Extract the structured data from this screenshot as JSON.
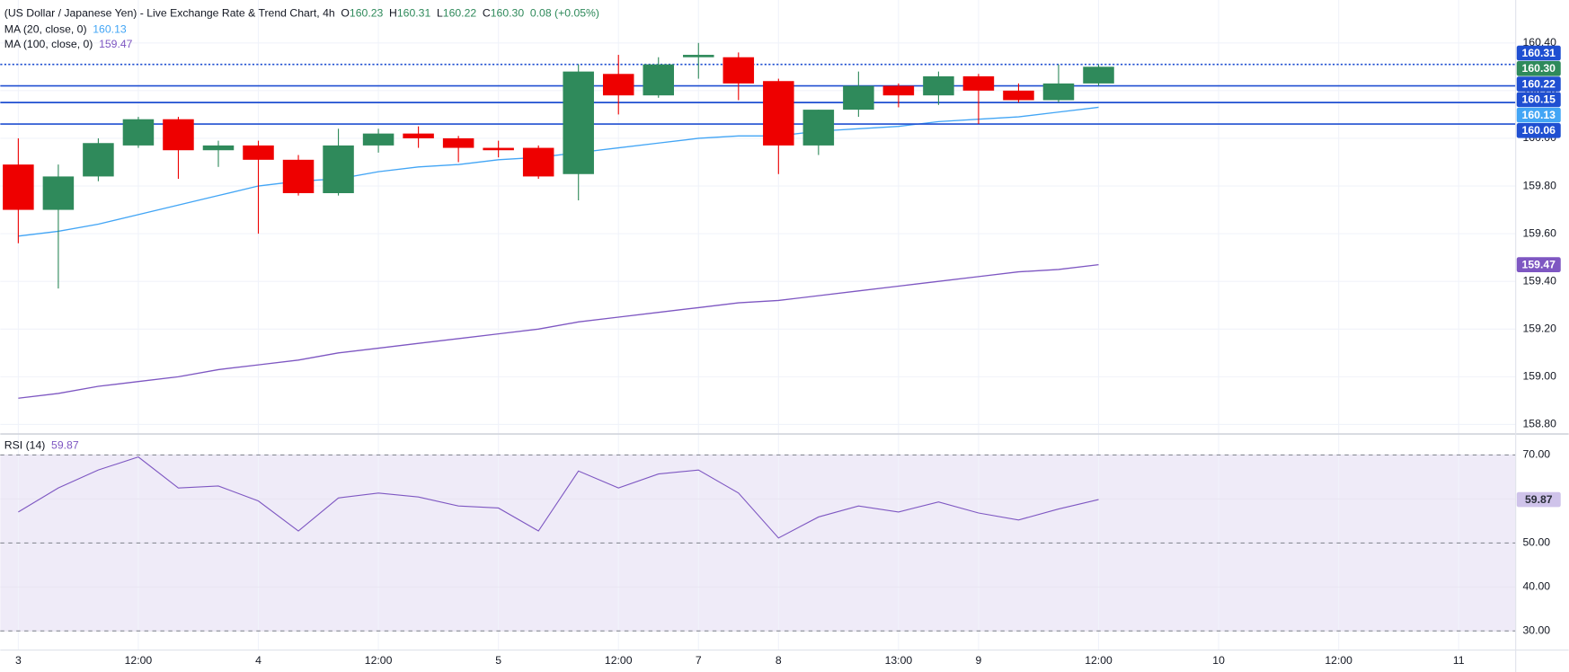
{
  "chart_data": [
    {
      "type": "candlestick",
      "title": "(US Dollar / Japanese Yen) - Live Exchange Rate & Trend Chart, 4h",
      "ohlc": [
        {
          "key": "O",
          "value": "160.23"
        },
        {
          "key": "H",
          "value": "160.31"
        },
        {
          "key": "L",
          "value": "160.22"
        },
        {
          "key": "C",
          "value": "160.30"
        }
      ],
      "change": "0.08 (+0.05%)",
      "categories": [
        "3",
        null,
        null,
        "12:00",
        null,
        null,
        "4",
        null,
        null,
        "12:00",
        null,
        null,
        "5",
        null,
        null,
        "12:00",
        null,
        "7",
        null,
        "8",
        null,
        null,
        "13:00",
        null,
        "9",
        null,
        null,
        "12:00",
        null,
        null,
        "10",
        null,
        null,
        "12:00",
        null,
        null,
        "11"
      ],
      "open": [
        159.89,
        159.7,
        159.84,
        159.97,
        160.08,
        159.95,
        159.97,
        159.91,
        159.77,
        159.97,
        160.02,
        160,
        159.96,
        159.96,
        159.85,
        160.27,
        160.18,
        160.34,
        160.34,
        160.24,
        159.97,
        160.12,
        160.22,
        160.18,
        160.26,
        160.2,
        160.16,
        160.23,
        null,
        null,
        null,
        null,
        null,
        null,
        null,
        null,
        null
      ],
      "high": [
        160,
        159.89,
        160,
        160.09,
        160.09,
        159.99,
        159.99,
        159.93,
        160.04,
        160.04,
        160.05,
        160.01,
        159.99,
        159.97,
        160.31,
        160.35,
        160.34,
        160.4,
        160.36,
        160.25,
        160.12,
        160.28,
        160.23,
        160.28,
        160.27,
        160.23,
        160.31,
        160.31,
        null,
        null,
        null,
        null,
        null,
        null,
        null,
        null,
        null
      ],
      "low": [
        159.56,
        159.37,
        159.82,
        159.96,
        159.83,
        159.88,
        159.6,
        159.76,
        159.76,
        159.94,
        159.96,
        159.9,
        159.92,
        159.83,
        159.74,
        160.1,
        160.17,
        160.25,
        160.16,
        159.85,
        159.93,
        160.09,
        160.13,
        160.14,
        160.06,
        160.15,
        160.15,
        160.22,
        null,
        null,
        null,
        null,
        null,
        null,
        null,
        null,
        null
      ],
      "close": [
        159.7,
        159.84,
        159.98,
        160.08,
        159.95,
        159.97,
        159.91,
        159.77,
        159.97,
        160.02,
        160,
        159.96,
        159.95,
        159.84,
        160.28,
        160.18,
        160.31,
        160.35,
        160.23,
        159.97,
        160.12,
        160.22,
        160.18,
        160.26,
        160.2,
        160.16,
        160.23,
        160.3,
        null,
        null,
        null,
        null,
        null,
        null,
        null,
        null,
        null
      ],
      "close_label": "160.30",
      "up_color": "#2f8a5b",
      "down_color": "#ee0000",
      "overlays": [
        {
          "name": "MA (20, close, 0)",
          "color": "#42a5f5",
          "values": [
            159.59,
            159.61,
            159.64,
            159.68,
            159.72,
            159.76,
            159.8,
            159.82,
            159.83,
            159.86,
            159.88,
            159.89,
            159.91,
            159.92,
            159.94,
            159.96,
            159.98,
            160,
            160.01,
            160.01,
            160.03,
            160.04,
            160.05,
            160.07,
            160.08,
            160.09,
            160.11,
            160.13,
            null,
            null,
            null,
            null,
            null,
            null,
            null,
            null,
            null
          ]
        },
        {
          "name": "MA (100, close, 0)",
          "color": "#7e57c2",
          "values": [
            158.91,
            158.93,
            158.96,
            158.98,
            159,
            159.03,
            159.05,
            159.07,
            159.1,
            159.12,
            159.14,
            159.16,
            159.18,
            159.2,
            159.23,
            159.25,
            159.27,
            159.29,
            159.31,
            159.32,
            159.34,
            159.36,
            159.38,
            159.4,
            159.42,
            159.44,
            159.45,
            159.47,
            null,
            null,
            null,
            null,
            null,
            null,
            null,
            null,
            null
          ]
        }
      ],
      "levels": [
        {
          "value": 160.31,
          "label": "160.31",
          "style": "dotted"
        },
        {
          "value": 160.22,
          "label": "160.22",
          "style": "solid"
        },
        {
          "value": 160.15,
          "label": "160.15",
          "style": "solid"
        },
        {
          "value": 160.06,
          "label": "160.06",
          "style": "solid"
        }
      ],
      "level_color": "#1f4fd1",
      "ylim": [
        158.76,
        160.58
      ],
      "yticks": [
        {
          "value": 158.8,
          "label": "158.80"
        },
        {
          "value": 159,
          "label": "159.00"
        },
        {
          "value": 159.2,
          "label": "159.20"
        },
        {
          "value": 159.4,
          "label": "159.40"
        },
        {
          "value": 159.6,
          "label": "159.60"
        },
        {
          "value": 159.8,
          "label": "159.80"
        },
        {
          "value": 160,
          "label": "160.00"
        },
        {
          "value": 160.2,
          "label": "160.20"
        },
        {
          "value": 160.4,
          "label": "160.40"
        }
      ],
      "grid": true
    },
    {
      "type": "line",
      "series": [
        {
          "name": "RSI (14)",
          "color": "#7e57c2",
          "values": [
            57.05,
            62.5,
            66.59,
            69.55,
            62.5,
            62.95,
            59.55,
            52.73,
            60.23,
            61.36,
            60.45,
            58.41,
            57.95,
            52.73,
            66.36,
            62.5,
            65.68,
            66.59,
            61.36,
            51.14,
            55.91,
            58.41,
            57.05,
            59.32,
            56.82,
            55.23,
            57.73,
            59.87,
            null,
            null,
            null,
            null,
            null,
            null,
            null,
            null,
            null
          ]
        }
      ],
      "dashed_levels": [
        70,
        50,
        30
      ],
      "band_color": "#efebf8",
      "ylim": [
        25.68,
        74.77
      ],
      "yticks": [
        {
          "value": 30,
          "label": "30.00"
        },
        {
          "value": 40,
          "label": "40.00"
        },
        {
          "value": 50,
          "label": "50.00"
        },
        {
          "value": 60,
          "label": "60.00"
        },
        {
          "value": 70,
          "label": "70.00"
        }
      ],
      "grid": true
    }
  ]
}
